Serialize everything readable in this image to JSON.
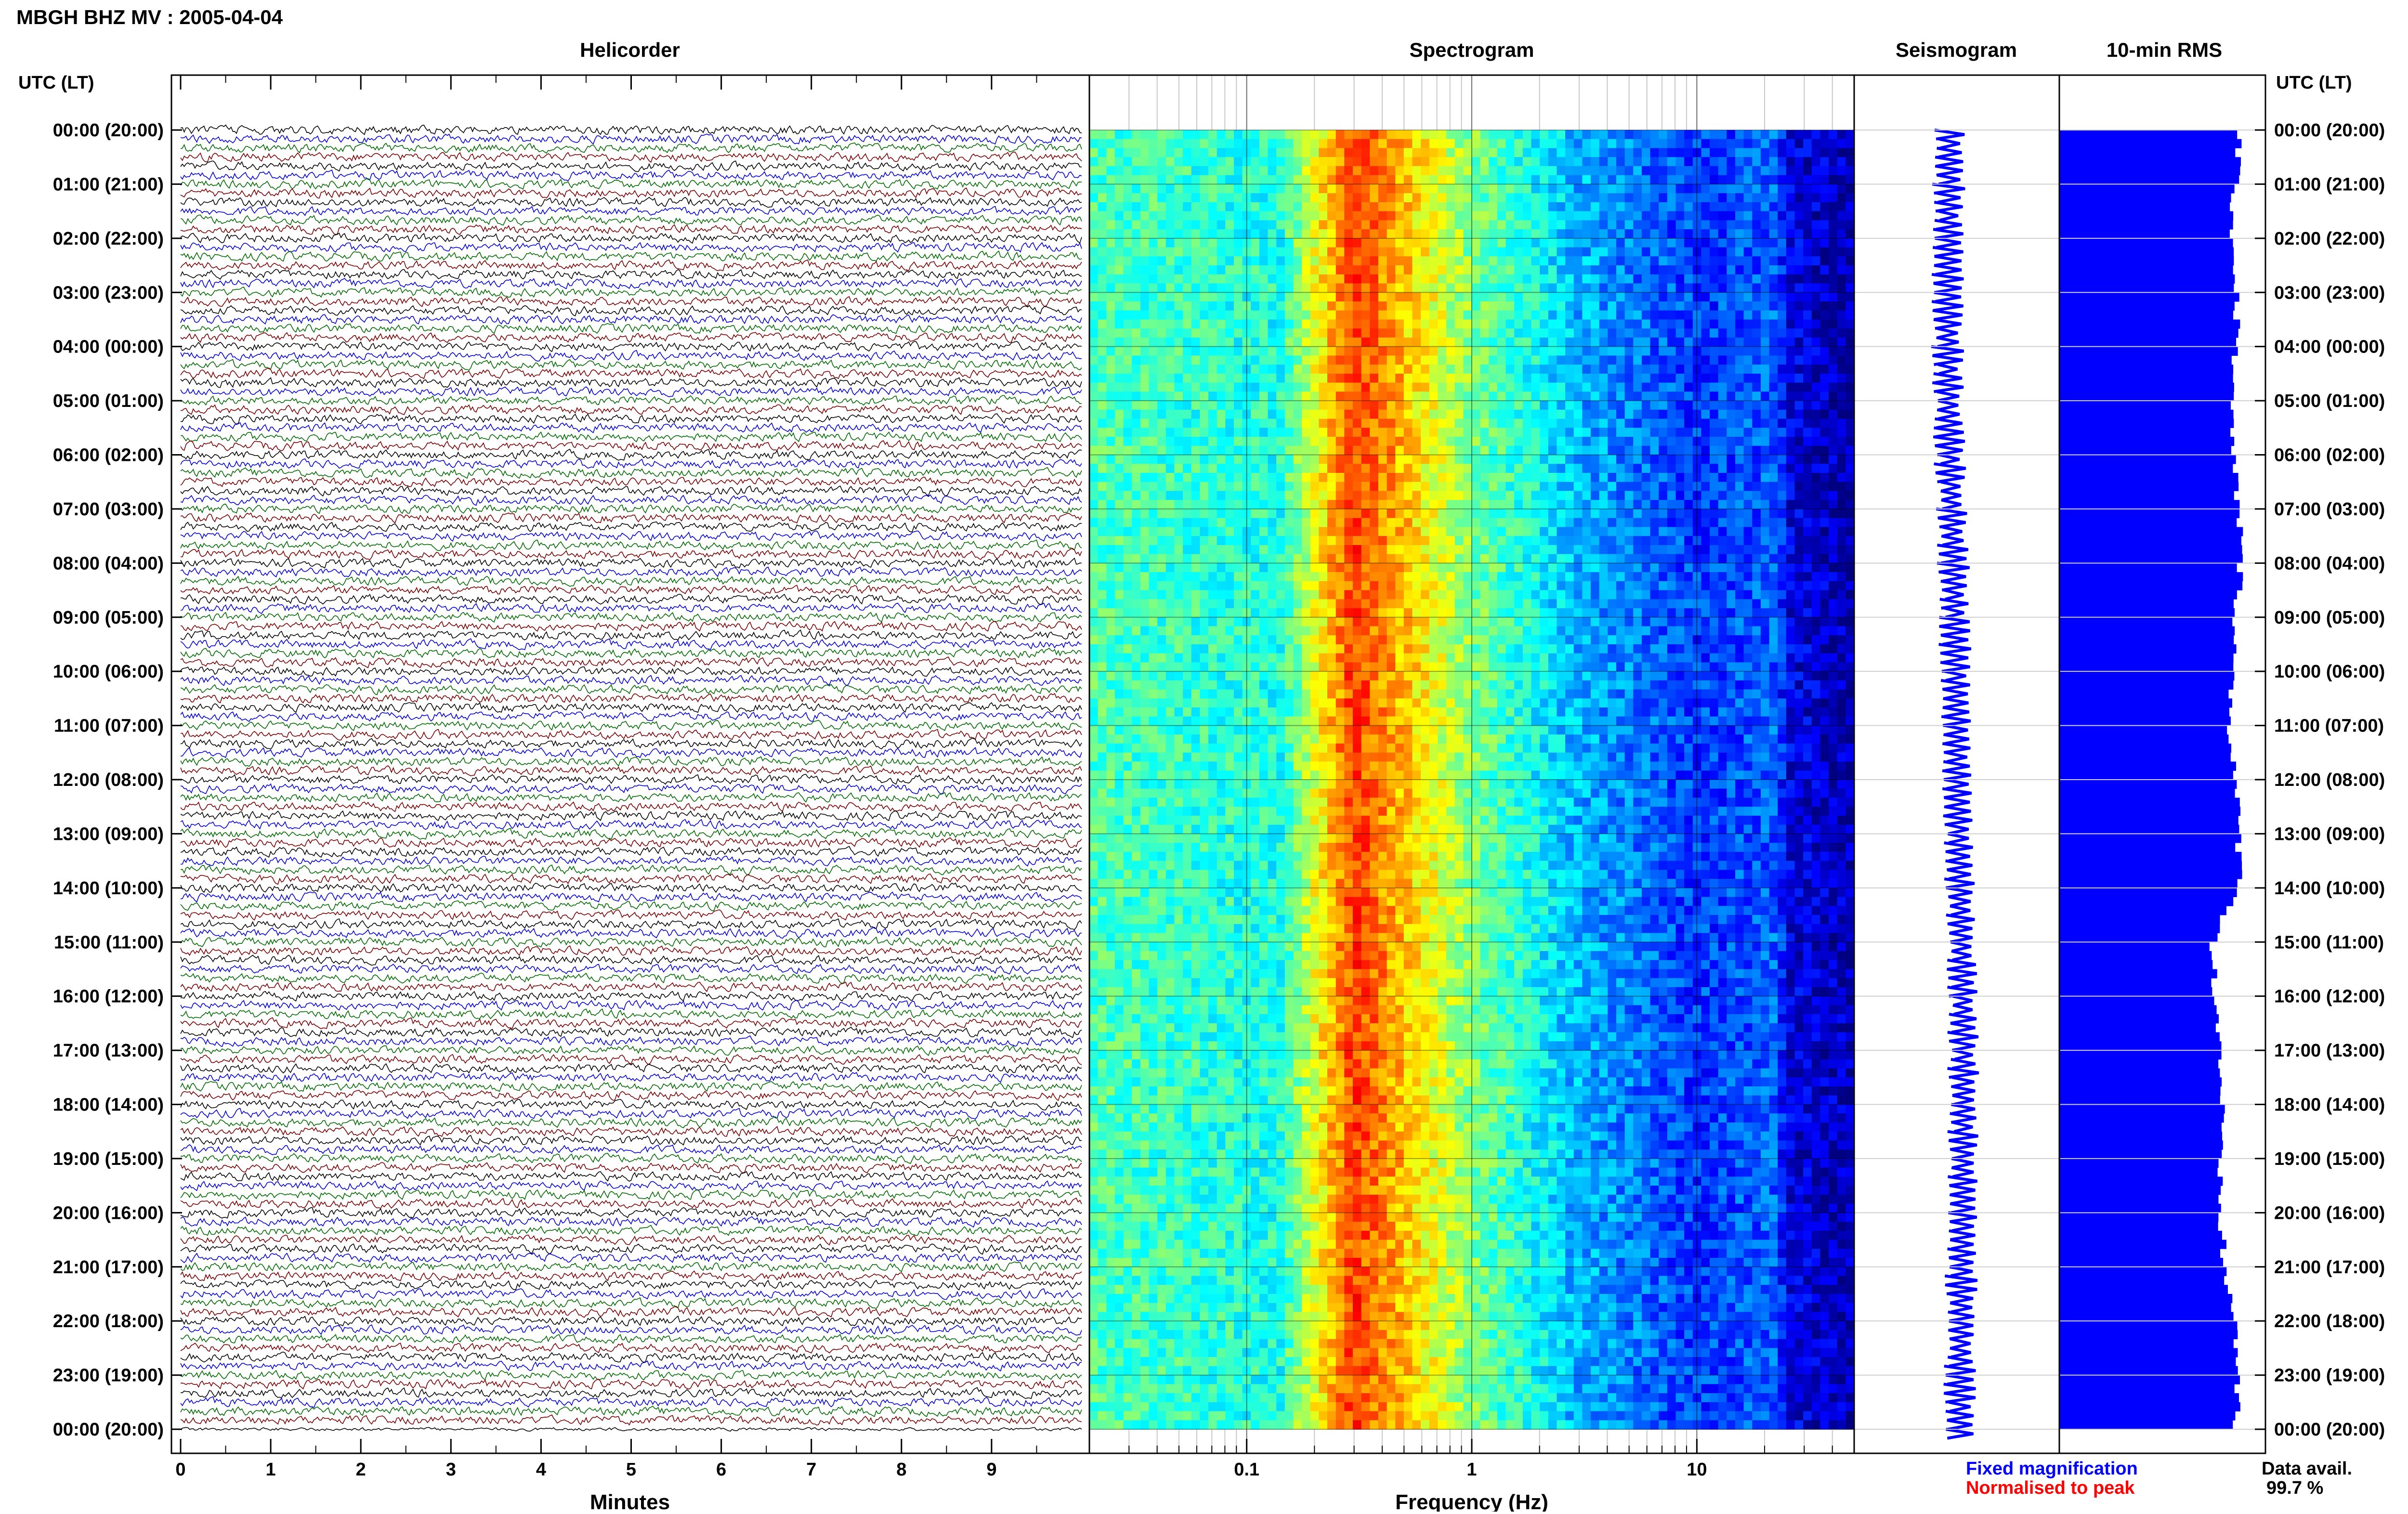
{
  "header": {
    "title": "MBGH BHZ MV : 2005-04-04",
    "left_axis_title": "UTC (LT)",
    "right_axis_title": "UTC (LT)"
  },
  "panels": {
    "helicorder_title": "Helicorder",
    "spectrogram_title": "Spectrogram",
    "seismogram_title": "Seismogram",
    "rms_title": "10-min RMS"
  },
  "axes": {
    "minutes_label": "Minutes",
    "frequency_label": "Frequency (Hz)"
  },
  "legend": {
    "fixed": "Fixed magnification",
    "normalised": "Normalised to peak",
    "data_avail_label": "Data avail.",
    "data_avail_value": "99.7 %"
  },
  "colors": {
    "trace_cycle": [
      "#000000",
      "#0000d8",
      "#006a00",
      "#7a0000"
    ],
    "rms_bar": "#0000ff",
    "seismogram": "#0000ff",
    "fixed_text": "#0000ff",
    "normalised_text": "#ff0000"
  },
  "chart_data": [
    {
      "type": "line",
      "title": "Helicorder",
      "xlabel": "Minutes",
      "ylabel": "UTC (LT)",
      "x_ticks": [
        "0",
        "1",
        "2",
        "3",
        "4",
        "5",
        "6",
        "7",
        "8",
        "9"
      ],
      "xlim": [
        0,
        10
      ],
      "y_ticks": [
        "00:00 (20:00)",
        "01:00 (21:00)",
        "02:00 (22:00)",
        "03:00 (23:00)",
        "04:00 (00:00)",
        "05:00 (01:00)",
        "06:00 (02:00)",
        "07:00 (03:00)",
        "08:00 (04:00)",
        "09:00 (05:00)",
        "10:00 (06:00)",
        "11:00 (07:00)",
        "12:00 (08:00)",
        "13:00 (09:00)",
        "14:00 (10:00)",
        "15:00 (11:00)",
        "16:00 (12:00)",
        "17:00 (13:00)",
        "18:00 (14:00)",
        "19:00 (15:00)",
        "20:00 (16:00)",
        "21:00 (17:00)",
        "22:00 (18:00)",
        "23:00 (19:00)",
        "00:00 (20:00)"
      ],
      "lines_per_hour": 6,
      "grid": true
    },
    {
      "type": "heatmap",
      "title": "Spectrogram",
      "xlabel": "Frequency (Hz)",
      "x_scale": "log",
      "xlim": [
        0.02,
        50
      ],
      "x_ticks": [
        "0.1",
        "1",
        "10"
      ],
      "band_freq_hz": [
        0.02,
        0.14,
        0.3,
        1,
        3,
        10,
        22,
        26,
        50
      ],
      "band_level": [
        0.45,
        0.4,
        0.82,
        0.5,
        0.3,
        0.18,
        0.22,
        0.1,
        0.05
      ]
    },
    {
      "type": "line",
      "title": "Seismogram",
      "rows_per_hour": 6,
      "center_offset_hours": [
        0,
        1,
        2,
        3,
        4,
        5,
        6,
        7,
        8,
        9,
        10,
        11,
        12,
        13,
        14,
        15,
        16,
        17,
        18,
        19,
        20,
        21,
        22,
        23,
        24
      ],
      "center_offset": [
        0.35,
        0.38,
        0.4,
        0.42,
        0.42,
        0.4,
        0.35,
        0.28,
        0.22,
        0.18,
        0.15,
        0.12,
        0.1,
        0.05,
        0.0,
        -0.05,
        -0.1,
        -0.12,
        -0.12,
        -0.1,
        -0.1,
        -0.05,
        -0.05,
        0.0,
        0.0
      ]
    },
    {
      "type": "bar",
      "title": "10-min RMS",
      "orientation": "horizontal",
      "hours": [
        0,
        1,
        2,
        3,
        4,
        5,
        6,
        7,
        8,
        9,
        10,
        11,
        12,
        13,
        14,
        15,
        16,
        17,
        18,
        19,
        20,
        21,
        22,
        23,
        24
      ],
      "rms_relative": [
        0.88,
        0.85,
        0.84,
        0.86,
        0.86,
        0.83,
        0.84,
        0.87,
        0.88,
        0.86,
        0.84,
        0.83,
        0.85,
        0.87,
        0.88,
        0.74,
        0.76,
        0.78,
        0.79,
        0.77,
        0.78,
        0.8,
        0.85,
        0.87,
        0.85
      ],
      "xlim": [
        0,
        1
      ]
    }
  ]
}
